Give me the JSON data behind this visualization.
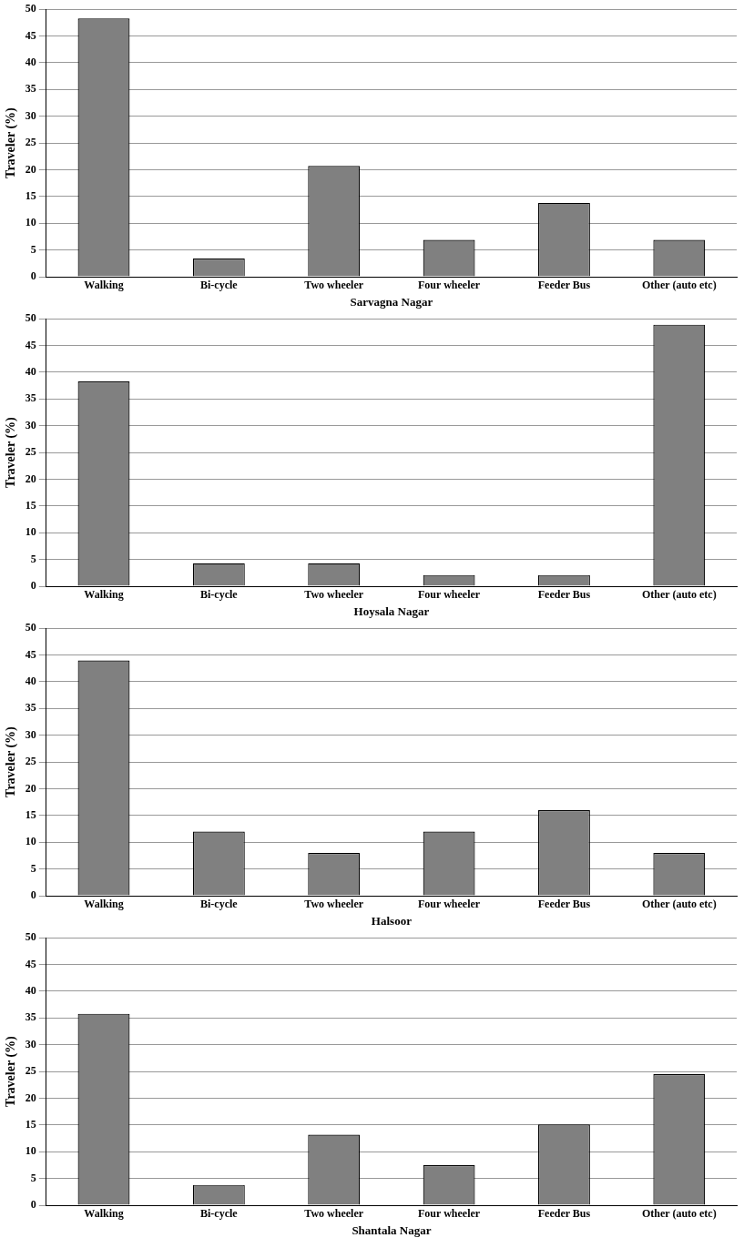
{
  "chart_data": [
    {
      "type": "bar",
      "xlabel": "Sarvagna Nagar",
      "ylabel": "Traveler (%)",
      "categories": [
        "Walking",
        "Bi-cycle",
        "Two wheeler",
        "Four wheeler",
        "Feeder Bus",
        "Other (auto etc)"
      ],
      "values": [
        48.3,
        3.4,
        20.7,
        6.9,
        13.8,
        6.9
      ],
      "color": "#808080",
      "ylim": [
        0,
        50
      ],
      "yticks": [
        0,
        5,
        10,
        15,
        20,
        25,
        30,
        35,
        40,
        45,
        50
      ],
      "grid": "y"
    },
    {
      "type": "bar",
      "xlabel": "Hoysala Nagar",
      "ylabel": "Traveler (%)",
      "categories": [
        "Walking",
        "Bi-cycle",
        "Two wheeler",
        "Four wheeler",
        "Feeder Bus",
        "Other (auto etc)"
      ],
      "values": [
        38.3,
        4.3,
        4.3,
        2.1,
        2.1,
        48.9
      ],
      "color": "#808080",
      "ylim": [
        0,
        50
      ],
      "yticks": [
        0,
        5,
        10,
        15,
        20,
        25,
        30,
        35,
        40,
        45,
        50
      ],
      "grid": "y"
    },
    {
      "type": "bar",
      "xlabel": "Halsoor",
      "ylabel": "Traveler (%)",
      "categories": [
        "Walking",
        "Bi-cycle",
        "Two wheeler",
        "Four wheeler",
        "Feeder Bus",
        "Other (auto etc)"
      ],
      "values": [
        44,
        12,
        8,
        12,
        16,
        8
      ],
      "color": "#808080",
      "ylim": [
        0,
        50
      ],
      "yticks": [
        0,
        5,
        10,
        15,
        20,
        25,
        30,
        35,
        40,
        45,
        50
      ],
      "grid": "y"
    },
    {
      "type": "bar",
      "xlabel": "Shantala Nagar",
      "ylabel": "Traveler (%)",
      "categories": [
        "Walking",
        "Bi-cycle",
        "Two wheeler",
        "Four wheeler",
        "Feeder Bus",
        "Other (auto etc)"
      ],
      "values": [
        35.8,
        3.8,
        13.2,
        7.5,
        15.1,
        24.5
      ],
      "color": "#808080",
      "ylim": [
        0,
        50
      ],
      "yticks": [
        0,
        5,
        10,
        15,
        20,
        25,
        30,
        35,
        40,
        45,
        50
      ],
      "grid": "y"
    }
  ]
}
